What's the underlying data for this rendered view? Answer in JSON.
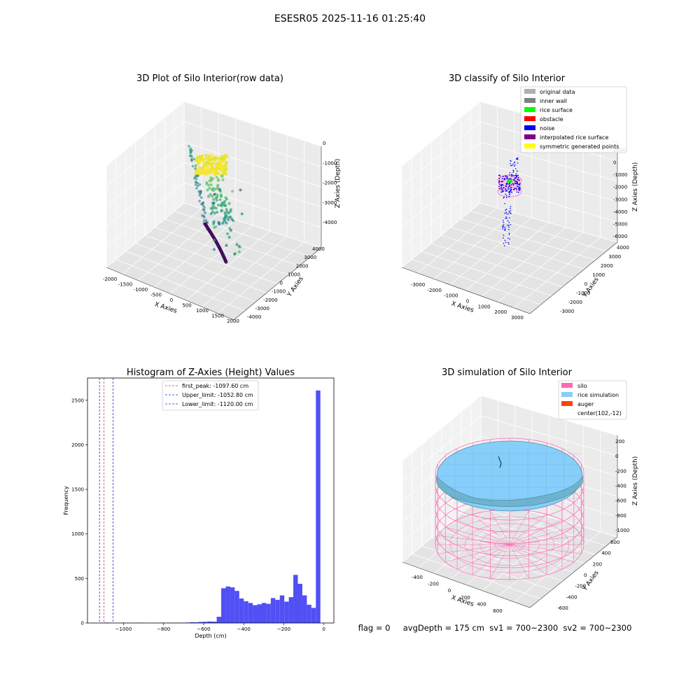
{
  "suptitle": "ESESR05 2025-11-16 01:25:40",
  "footer": "flag = 0     avgDepth = 175 cm  sv1 = 700~2300  sv2 = 700~2300",
  "colors": {
    "hist_bar": "#5050f5",
    "first_peak": "#e33b3b",
    "limit": "#2233cc",
    "silo": "#ff69b4",
    "rice": "#87cefa",
    "auger": "#ff4500"
  },
  "chart_data": [
    {
      "type": "scatter",
      "title": "3D Plot of Silo Interior(row data)",
      "xlabel": "X Axies",
      "ylabel": "Y Axies",
      "zlabel": "Z Axies (Depth)",
      "x_ticks": [
        "-2000",
        "-1500",
        "-1000",
        "-500",
        "0",
        "500",
        "1000",
        "1500",
        "2000"
      ],
      "y_ticks": [
        "-4000",
        "-3000",
        "-2000",
        "-1000",
        "0",
        "1000",
        "2000",
        "3000",
        "4000"
      ],
      "z_ticks": [
        "-4000",
        "-3000",
        "-2000",
        "-1000",
        "0"
      ],
      "xlim": [
        -2000,
        2000
      ],
      "ylim": [
        -4000,
        4000
      ],
      "zlim": [
        -4300,
        100
      ],
      "colormap": "viridis (by depth)"
    },
    {
      "type": "scatter",
      "title": "3D classify of Silo Interior",
      "xlabel": "X Axies",
      "ylabel": "Y Axies",
      "zlabel": "Z Axies (Depth)",
      "x_ticks": [
        "-3000",
        "-2000",
        "-1000",
        "0",
        "1000",
        "2000",
        "3000"
      ],
      "y_ticks": [
        "-3000",
        "-2000",
        "-1000",
        "0",
        "1000",
        "2000",
        "3000",
        "4000"
      ],
      "z_ticks": [
        "-6000",
        "-5000",
        "-4000",
        "-3000",
        "-2000",
        "-1000",
        "0",
        "1000"
      ],
      "legend": [
        {
          "label": "original data",
          "color": "#b0b0b0"
        },
        {
          "label": "inner wall",
          "color": "#808080"
        },
        {
          "label": "rice surface",
          "color": "#00ff00"
        },
        {
          "label": "obstacle",
          "color": "#ff0000"
        },
        {
          "label": "noise",
          "color": "#0000ff"
        },
        {
          "label": "interpolated rice surface",
          "color": "#800080"
        },
        {
          "label": "symmetric generated points",
          "color": "#ffff00"
        }
      ],
      "legend_position": "top-right"
    },
    {
      "type": "bar",
      "title": "Histogram of Z-Axies (Height) Values",
      "xlabel": "Depth (cm)",
      "ylabel": "Frequency",
      "xlim": [
        -1180,
        50
      ],
      "ylim": [
        0,
        2750
      ],
      "x_ticks": [
        -1000,
        -800,
        -600,
        -400,
        -200,
        0
      ],
      "y_ticks": [
        0,
        500,
        1000,
        1500,
        2000,
        2500
      ],
      "bin_width": 22.5,
      "bins": [
        [
          -1120,
          3
        ],
        [
          -1097.5,
          5
        ],
        [
          -1075,
          2
        ],
        [
          -1052.5,
          0
        ],
        [
          -1030,
          2
        ],
        [
          -1007.5,
          4
        ],
        [
          -985,
          1
        ],
        [
          -962.5,
          0
        ],
        [
          -940,
          3
        ],
        [
          -917.5,
          4
        ],
        [
          -895,
          0
        ],
        [
          -872.5,
          0
        ],
        [
          -850,
          2
        ],
        [
          -827.5,
          3
        ],
        [
          -805,
          2
        ],
        [
          -782.5,
          3
        ],
        [
          -760,
          3
        ],
        [
          -737.5,
          4
        ],
        [
          -715,
          3
        ],
        [
          -692.5,
          5
        ],
        [
          -670,
          9
        ],
        [
          -647.5,
          8
        ],
        [
          -625,
          12
        ],
        [
          -602.5,
          14
        ],
        [
          -580,
          17
        ],
        [
          -557.5,
          15
        ],
        [
          -535,
          70
        ],
        [
          -512.5,
          390
        ],
        [
          -490,
          410
        ],
        [
          -467.5,
          400
        ],
        [
          -445,
          360
        ],
        [
          -422.5,
          275
        ],
        [
          -400,
          245
        ],
        [
          -377.5,
          225
        ],
        [
          -355,
          200
        ],
        [
          -332.5,
          210
        ],
        [
          -310,
          225
        ],
        [
          -287.5,
          215
        ],
        [
          -265,
          280
        ],
        [
          -242.5,
          260
        ],
        [
          -220,
          310
        ],
        [
          -197.5,
          240
        ],
        [
          -175,
          290
        ],
        [
          -152.5,
          540
        ],
        [
          -130,
          440
        ],
        [
          -107.5,
          310
        ],
        [
          -85,
          205
        ],
        [
          -62.5,
          170
        ],
        [
          -40,
          2610
        ]
      ],
      "vlines": [
        {
          "label": "first_peak: -1097.60 cm",
          "x": -1097.6,
          "color": "#e33b3b"
        },
        {
          "label": "Upper_limit: -1052.80 cm",
          "x": -1052.8,
          "color": "#2233cc"
        },
        {
          "label": "Lower_limit: -1120.00 cm",
          "x": -1120.0,
          "color": "#2233cc"
        }
      ],
      "legend_position": "top-center"
    },
    {
      "type": "surface",
      "title": "3D simulation of Silo Interior",
      "xlabel": "X Axies",
      "ylabel": "Y Axies",
      "zlabel": "Z Axies (Depth)",
      "x_ticks": [
        "-400",
        "-200",
        "0",
        "200",
        "400",
        "600"
      ],
      "y_ticks": [
        "-600",
        "-400",
        "-200",
        "0",
        "200",
        "400",
        "600"
      ],
      "z_ticks": [
        "-1000",
        "-800",
        "-600",
        "-400",
        "-200",
        "0",
        "200"
      ],
      "legend": [
        {
          "label": "silo",
          "color": "#ff69b4"
        },
        {
          "label": "rice simulation",
          "color": "#87cefa"
        },
        {
          "label": "auger",
          "color": "#ff4500"
        },
        {
          "label": "center(102,-12)",
          "color": "none"
        }
      ],
      "legend_position": "top-right"
    }
  ]
}
